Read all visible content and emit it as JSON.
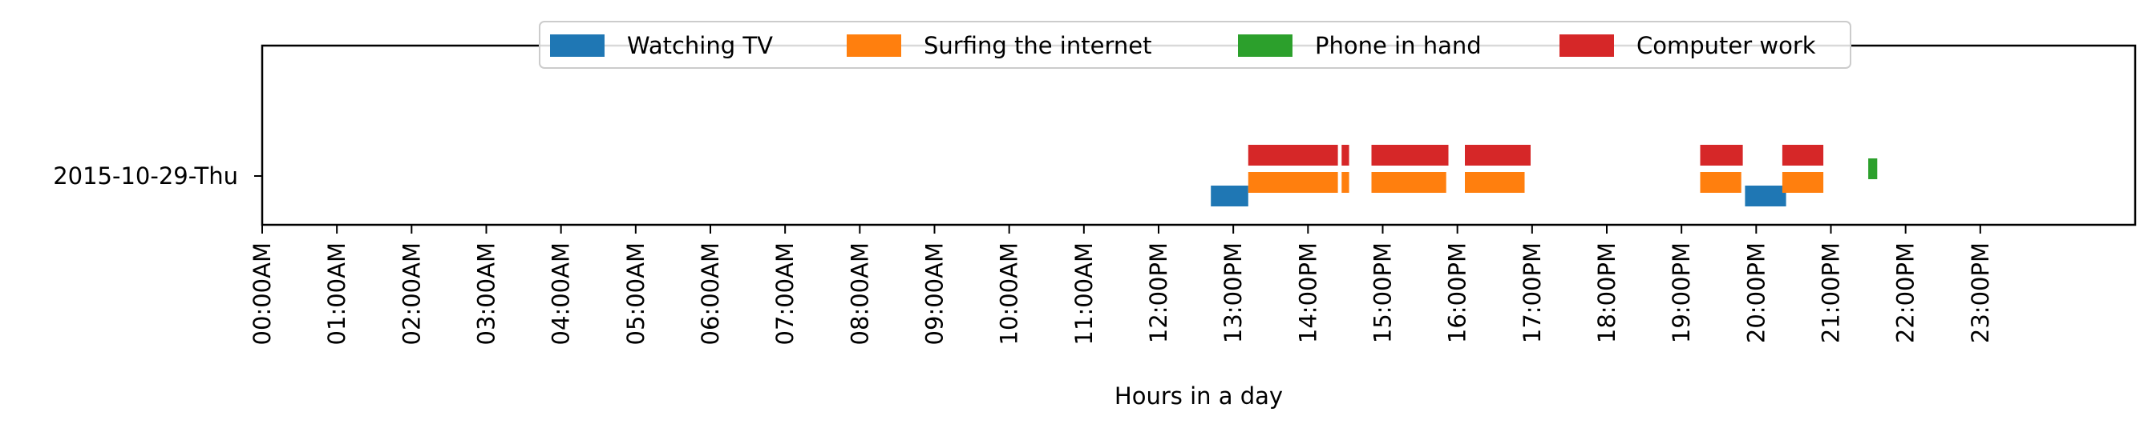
{
  "chart_data": {
    "type": "timeline",
    "xlabel": "Hours in a day",
    "xlim": [
      0,
      24
    ],
    "x_ticks": [
      {
        "hour": 0,
        "label": "00:00AM"
      },
      {
        "hour": 1,
        "label": "01:00AM"
      },
      {
        "hour": 2,
        "label": "02:00AM"
      },
      {
        "hour": 3,
        "label": "03:00AM"
      },
      {
        "hour": 4,
        "label": "04:00AM"
      },
      {
        "hour": 5,
        "label": "05:00AM"
      },
      {
        "hour": 6,
        "label": "06:00AM"
      },
      {
        "hour": 7,
        "label": "07:00AM"
      },
      {
        "hour": 8,
        "label": "08:00AM"
      },
      {
        "hour": 9,
        "label": "09:00AM"
      },
      {
        "hour": 10,
        "label": "10:00AM"
      },
      {
        "hour": 11,
        "label": "11:00AM"
      },
      {
        "hour": 12,
        "label": "12:00PM"
      },
      {
        "hour": 13,
        "label": "13:00PM"
      },
      {
        "hour": 14,
        "label": "14:00PM"
      },
      {
        "hour": 15,
        "label": "15:00PM"
      },
      {
        "hour": 16,
        "label": "16:00PM"
      },
      {
        "hour": 17,
        "label": "17:00PM"
      },
      {
        "hour": 18,
        "label": "18:00PM"
      },
      {
        "hour": 19,
        "label": "19:00PM"
      },
      {
        "hour": 20,
        "label": "20:00PM"
      },
      {
        "hour": 21,
        "label": "21:00PM"
      },
      {
        "hour": 22,
        "label": "22:00PM"
      },
      {
        "hour": 23,
        "label": "23:00PM"
      }
    ],
    "y_categories": [
      "2015-10-29-Thu"
    ],
    "legend_position": "top-center",
    "grid": false,
    "series": [
      {
        "name": "Watching TV",
        "color": "#1f77b4",
        "intervals": [
          [
            12.7,
            13.2
          ],
          [
            19.85,
            20.4
          ]
        ]
      },
      {
        "name": "Surfing the internet",
        "color": "#ff7f0e",
        "intervals": [
          [
            13.2,
            14.4
          ],
          [
            14.45,
            14.55
          ],
          [
            14.85,
            15.85
          ],
          [
            16.1,
            16.9
          ],
          [
            19.25,
            19.8
          ],
          [
            20.35,
            20.9
          ]
        ]
      },
      {
        "name": "Phone in hand",
        "color": "#2ca02c",
        "intervals": [
          [
            21.5,
            21.62
          ]
        ]
      },
      {
        "name": "Computer work",
        "color": "#d62728",
        "intervals": [
          [
            13.2,
            14.4
          ],
          [
            14.45,
            14.55
          ],
          [
            14.85,
            15.88
          ],
          [
            16.1,
            16.98
          ],
          [
            19.25,
            19.82
          ],
          [
            20.35,
            20.9
          ]
        ]
      }
    ]
  }
}
